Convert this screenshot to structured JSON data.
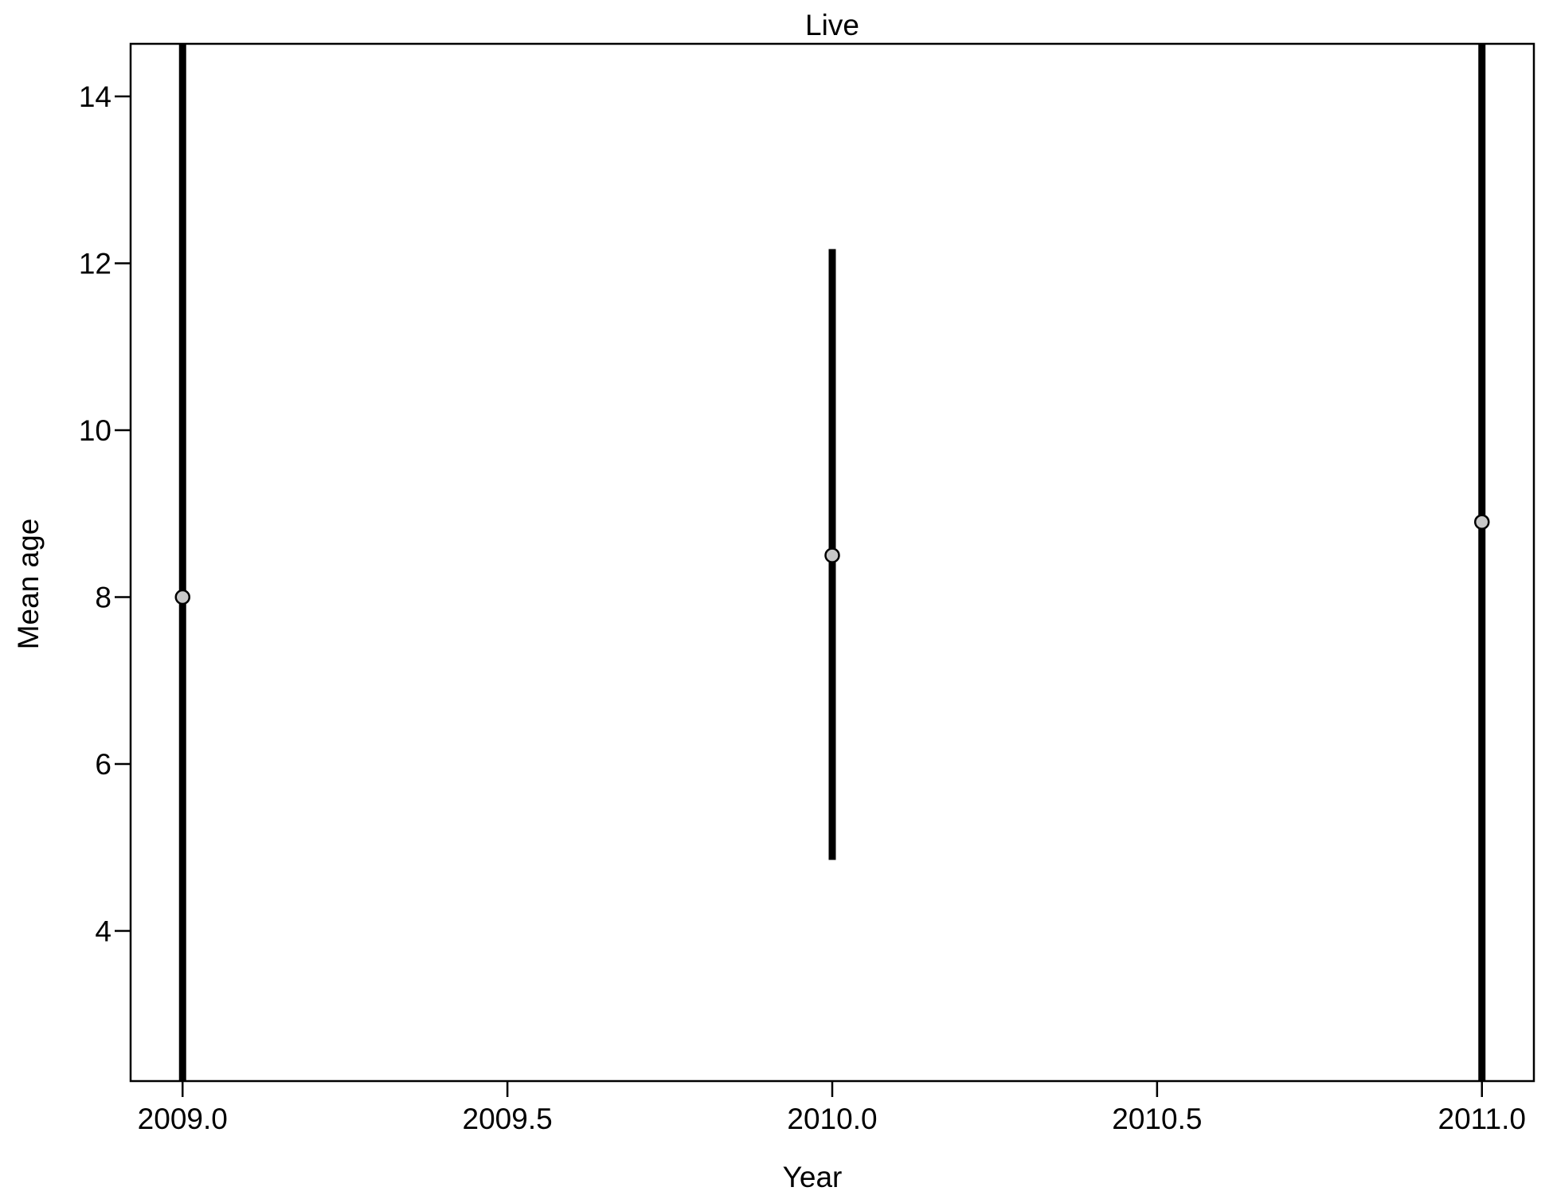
{
  "chart_data": {
    "type": "scatter",
    "title": "Live",
    "xlabel": "Year",
    "ylabel": "Mean age",
    "xlim": [
      2008.92,
      2011.08
    ],
    "ylim": [
      2.2,
      14.63
    ],
    "xticks": [
      2009.0,
      2009.5,
      2010.0,
      2010.5,
      2011.0
    ],
    "xtick_labels": [
      "2009.0",
      "2009.5",
      "2010.0",
      "2010.5",
      "2011.0"
    ],
    "yticks": [
      4,
      6,
      8,
      10,
      12,
      14
    ],
    "ytick_labels": [
      "4",
      "6",
      "8",
      "10",
      "12",
      "14"
    ],
    "grid": false,
    "series": [
      {
        "points": [
          {
            "x": 2009.0,
            "y": 8.0,
            "lower": 2.2,
            "upper": 14.63
          },
          {
            "x": 2010.0,
            "y": 8.5,
            "lower": 4.85,
            "upper": 12.17
          },
          {
            "x": 2011.0,
            "y": 8.9,
            "lower": 2.2,
            "upper": 14.63
          }
        ]
      }
    ],
    "colors": {
      "point_fill": "#c8c8c8",
      "point_stroke": "#000000",
      "error_bar": "#000000",
      "frame": "#000000"
    }
  }
}
